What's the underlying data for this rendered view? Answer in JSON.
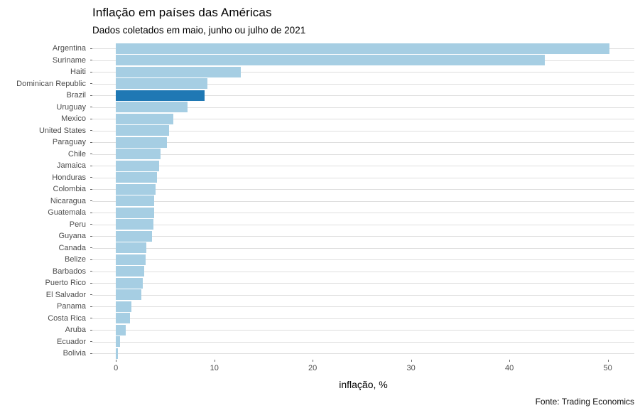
{
  "colors": {
    "bar": "#A6CEE3",
    "highlight_bar": "#1F78B4",
    "gridline": "#DEDEDE",
    "axis_text": "#4D4D4D",
    "tick_mark": "#666666"
  },
  "chart_data": {
    "type": "bar",
    "orientation": "horizontal",
    "title": "Inflação em países das Américas",
    "subtitle": "Dados coletados em maio, junho ou julho de 2021",
    "caption": "Fonte: Trading Economics",
    "xlabel": "inflação, %",
    "xticks": [
      0,
      10,
      20,
      30,
      40,
      50
    ],
    "xlim": [
      -2.4,
      52.7
    ],
    "grid": "horizontal-major-only",
    "legend": "none",
    "highlight_category": "Brazil",
    "categories": [
      "Argentina",
      "Suriname",
      "Haiti",
      "Dominican Republic",
      "Brazil",
      "Uruguay",
      "Mexico",
      "United States",
      "Paraguay",
      "Chile",
      "Jamaica",
      "Honduras",
      "Colombia",
      "Nicaragua",
      "Guatemala",
      "Peru",
      "Guyana",
      "Canada",
      "Belize",
      "Barbados",
      "Puerto Rico",
      "El Salvador",
      "Panama",
      "Costa Rica",
      "Aruba",
      "Ecuador",
      "Bolivia"
    ],
    "values": [
      50.2,
      43.6,
      12.7,
      9.3,
      9.0,
      7.3,
      5.8,
      5.4,
      5.2,
      4.5,
      4.4,
      4.2,
      4.0,
      3.9,
      3.9,
      3.8,
      3.7,
      3.1,
      3.0,
      2.9,
      2.7,
      2.6,
      1.6,
      1.4,
      1.0,
      0.4,
      0.2
    ]
  }
}
